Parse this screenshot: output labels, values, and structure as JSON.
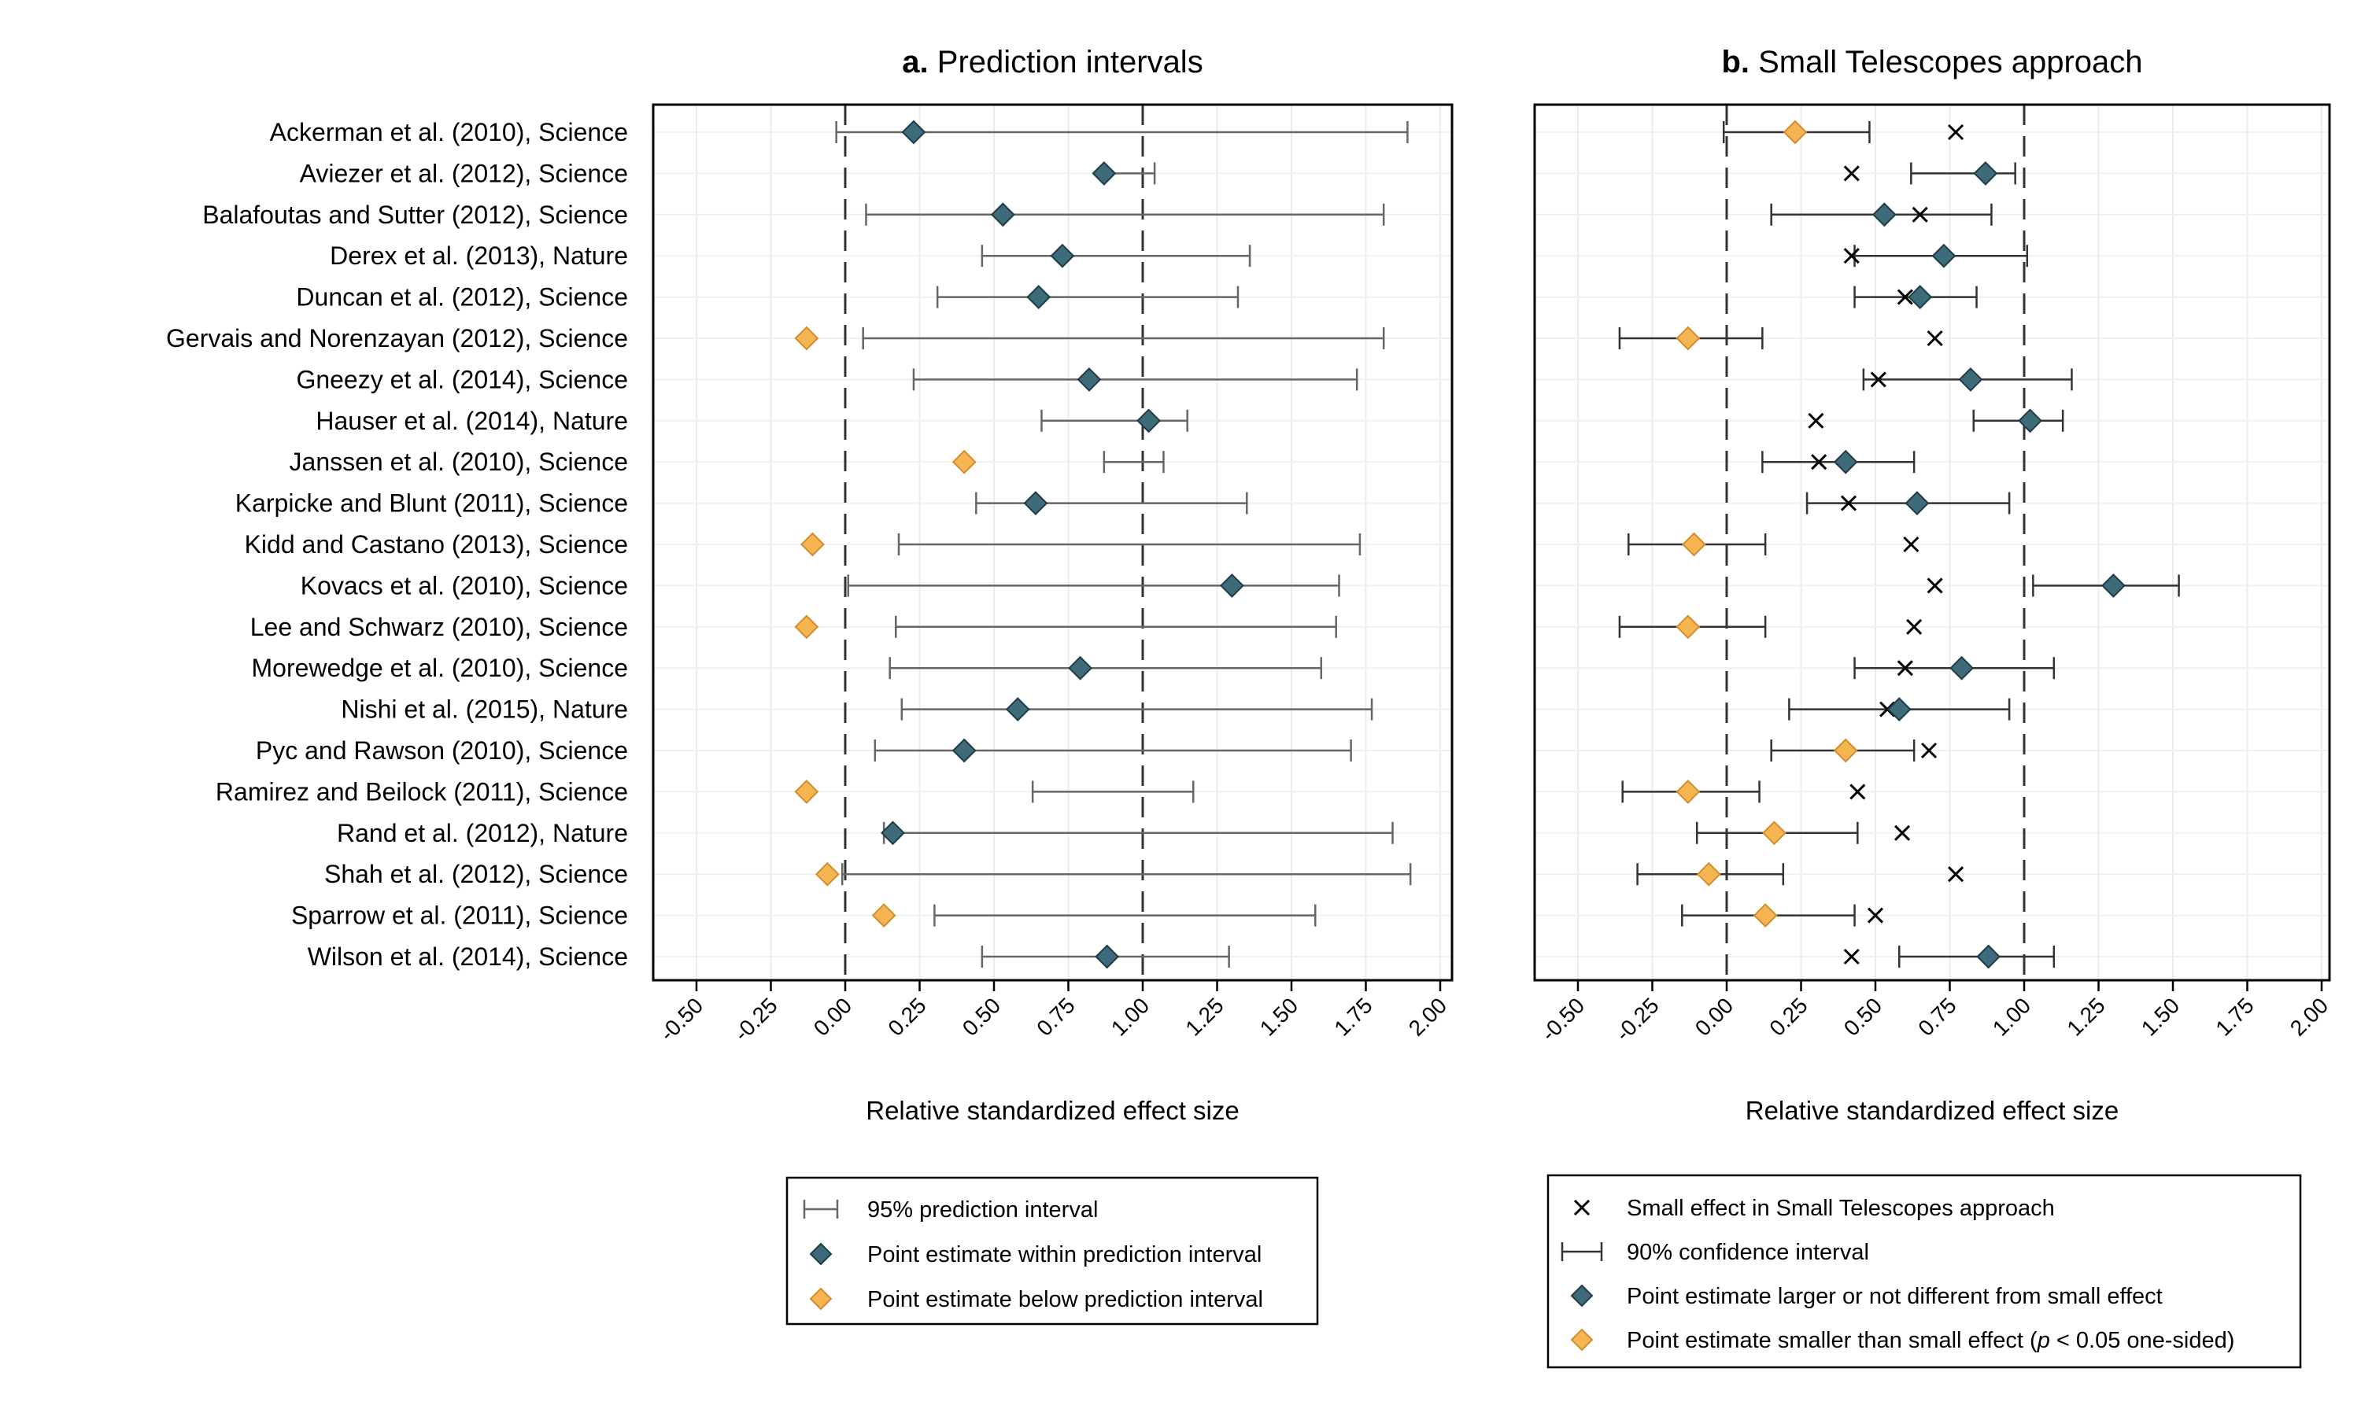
{
  "chart_data": [
    {
      "type": "scatter",
      "panel_letter": "a.",
      "title": "Prediction intervals",
      "xlabel": "Relative standardized effect size",
      "xlim": [
        -0.5,
        2.0
      ],
      "xticks": [
        "-0.50",
        "-0.25",
        "0.00",
        "0.25",
        "0.50",
        "0.75",
        "1.00",
        "1.25",
        "1.50",
        "1.75",
        "2.00"
      ],
      "reference_lines": [
        0,
        1
      ],
      "grid": true,
      "studies": [
        "Ackerman et al. (2010), Science",
        "Aviezer et al. (2012), Science",
        "Balafoutas and Sutter (2012), Science",
        "Derex et al. (2013), Nature",
        "Duncan et al. (2012), Science",
        "Gervais and Norenzayan (2012), Science",
        "Gneezy et al. (2014), Science",
        "Hauser et al. (2014), Nature",
        "Janssen et al. (2010), Science",
        "Karpicke and Blunt (2011), Science",
        "Kidd and Castano (2013), Science",
        "Kovacs et al. (2010), Science",
        "Lee and Schwarz (2010), Science",
        "Morewedge et al. (2010), Science",
        "Nishi et al. (2015), Nature",
        "Pyc and Rawson (2010), Science",
        "Ramirez and Beilock (2011), Science",
        "Rand et al. (2012), Nature",
        "Shah et al. (2012), Science",
        "Sparrow et al. (2011), Science",
        "Wilson et al. (2014), Science"
      ],
      "series": [
        {
          "name": "95% prediction interval",
          "kind": "interval",
          "low": [
            -0.03,
            0.87,
            0.07,
            0.46,
            0.31,
            0.06,
            0.23,
            0.66,
            0.87,
            0.44,
            0.18,
            0.01,
            0.17,
            0.15,
            0.19,
            0.1,
            0.63,
            0.13,
            -0.01,
            0.3,
            0.46
          ],
          "high": [
            1.89,
            1.04,
            1.81,
            1.36,
            1.32,
            1.81,
            1.72,
            1.15,
            1.07,
            1.35,
            1.73,
            1.66,
            1.65,
            1.6,
            1.77,
            1.7,
            1.17,
            1.84,
            1.9,
            1.58,
            1.29
          ]
        },
        {
          "name": "Point estimate within prediction interval",
          "kind": "point",
          "color": "#3d6b7a",
          "values": [
            0.23,
            0.87,
            0.53,
            0.73,
            0.65,
            null,
            0.82,
            1.02,
            null,
            0.64,
            null,
            1.3,
            null,
            0.79,
            0.58,
            0.4,
            null,
            0.16,
            null,
            null,
            0.88
          ]
        },
        {
          "name": "Point estimate below prediction interval",
          "kind": "point",
          "color": "#f5b552",
          "values": [
            null,
            null,
            null,
            null,
            null,
            -0.13,
            null,
            null,
            0.4,
            null,
            -0.11,
            null,
            -0.13,
            null,
            null,
            null,
            -0.13,
            null,
            -0.06,
            0.13,
            null
          ]
        }
      ]
    },
    {
      "type": "scatter",
      "panel_letter": "b.",
      "title": "Small Telescopes approach",
      "xlabel": "Relative standardized effect size",
      "xlim": [
        -0.5,
        2.0
      ],
      "xticks": [
        "-0.50",
        "-0.25",
        "0.00",
        "0.25",
        "0.50",
        "0.75",
        "1.00",
        "1.25",
        "1.50",
        "1.75",
        "2.00"
      ],
      "reference_lines": [
        0,
        1
      ],
      "grid": true,
      "series": [
        {
          "name": "Small effect in Small Telescopes approach",
          "kind": "cross",
          "values": [
            0.77,
            0.42,
            0.65,
            0.42,
            0.6,
            0.7,
            0.51,
            0.3,
            0.31,
            0.41,
            0.62,
            0.7,
            0.63,
            0.6,
            0.54,
            0.68,
            0.44,
            0.59,
            0.77,
            0.5,
            0.42
          ]
        },
        {
          "name": "90% confidence interval",
          "kind": "interval",
          "low": [
            -0.01,
            0.62,
            0.15,
            0.43,
            0.43,
            -0.36,
            0.46,
            0.83,
            0.12,
            0.27,
            -0.33,
            1.03,
            -0.36,
            0.43,
            0.21,
            0.15,
            -0.35,
            -0.1,
            -0.3,
            -0.15,
            0.58
          ],
          "high": [
            0.48,
            0.97,
            0.89,
            1.01,
            0.84,
            0.12,
            1.16,
            1.13,
            0.63,
            0.95,
            0.13,
            1.52,
            0.13,
            1.1,
            0.95,
            0.63,
            0.11,
            0.44,
            0.19,
            0.43,
            1.1
          ]
        },
        {
          "name": "Point estimate larger or not different from small effect",
          "kind": "point",
          "color": "#3d6b7a",
          "values": [
            null,
            0.87,
            0.53,
            0.73,
            0.65,
            null,
            0.82,
            1.02,
            0.4,
            0.64,
            null,
            1.3,
            null,
            0.79,
            0.58,
            null,
            null,
            null,
            null,
            null,
            0.88
          ]
        },
        {
          "name": "Point estimate smaller than small effect",
          "name_suffix": "(p < 0.05 one-sided)",
          "kind": "point",
          "color": "#f5b552",
          "values": [
            0.23,
            null,
            null,
            null,
            null,
            -0.13,
            null,
            null,
            null,
            null,
            -0.11,
            null,
            -0.13,
            null,
            null,
            0.4,
            -0.13,
            0.16,
            -0.06,
            0.13,
            null
          ]
        }
      ]
    }
  ]
}
